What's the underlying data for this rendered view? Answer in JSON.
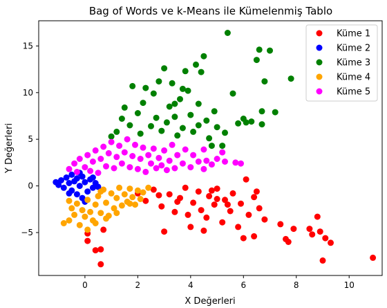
{
  "chart_data": {
    "type": "scatter",
    "title": "Bag of Words ve k-Means ile Kümelenmiş Tablo",
    "xlabel": "X Değerleri",
    "ylabel": "Y Değerleri",
    "xlim": [
      -1.75,
      11.25
    ],
    "ylim": [
      -9.6,
      17.7
    ],
    "xticks": [
      0,
      2,
      4,
      6,
      8,
      10
    ],
    "yticks": [
      -5,
      0,
      5,
      10,
      15
    ],
    "grid": false,
    "legend_position": "top-right",
    "series": [
      {
        "name": "Küme 1",
        "color": "#ff0000",
        "points": [
          [
            2.0,
            -0.8
          ],
          [
            2.3,
            -1.6
          ],
          [
            2.6,
            -0.4
          ],
          [
            2.9,
            -2.2
          ],
          [
            3.2,
            -0.9
          ],
          [
            3.4,
            -2.8
          ],
          [
            3.6,
            -1.3
          ],
          [
            3.8,
            -0.2
          ],
          [
            3.9,
            -3.1
          ],
          [
            4.1,
            -1.8
          ],
          [
            4.3,
            -0.6
          ],
          [
            4.4,
            -2.6
          ],
          [
            4.6,
            -3.4
          ],
          [
            4.7,
            -1.1
          ],
          [
            4.9,
            -2.0
          ],
          [
            5.0,
            -0.3
          ],
          [
            5.2,
            -3.9
          ],
          [
            5.3,
            -1.5
          ],
          [
            5.5,
            -2.7
          ],
          [
            5.6,
            -0.8
          ],
          [
            5.8,
            -4.4
          ],
          [
            5.9,
            -1.9
          ],
          [
            6.1,
            0.7
          ],
          [
            6.2,
            -3.1
          ],
          [
            6.4,
            -1.2
          ],
          [
            6.6,
            -2.4
          ],
          [
            6.8,
            -3.6
          ],
          [
            3.0,
            -4.9
          ],
          [
            4.0,
            -4.4
          ],
          [
            4.5,
            -4.8
          ],
          [
            6.0,
            -5.6
          ],
          [
            6.4,
            -5.4
          ],
          [
            6.5,
            -0.6
          ],
          [
            7.4,
            -4.1
          ],
          [
            7.6,
            -5.7
          ],
          [
            7.7,
            -6.0
          ],
          [
            7.9,
            -4.6
          ],
          [
            8.5,
            -4.6
          ],
          [
            8.6,
            -5.2
          ],
          [
            8.8,
            -3.3
          ],
          [
            8.9,
            -4.9
          ],
          [
            9.1,
            -5.6
          ],
          [
            9.3,
            -6.1
          ],
          [
            9.0,
            -8.0
          ],
          [
            10.9,
            -7.7
          ],
          [
            0.1,
            -5.9
          ],
          [
            0.1,
            -5.1
          ],
          [
            0.4,
            -6.9
          ],
          [
            0.6,
            -6.8
          ],
          [
            0.7,
            -4.7
          ],
          [
            0.6,
            -8.4
          ],
          [
            5.4,
            -2.0
          ],
          [
            5.0,
            -1.4
          ],
          [
            4.8,
            -0.5
          ],
          [
            3.5,
            -1.7
          ],
          [
            2.8,
            -1.0
          ]
        ]
      },
      {
        "name": "Küme 2",
        "color": "#0000ff",
        "points": [
          [
            -1.1,
            0.4
          ],
          [
            -1.0,
            0.1
          ],
          [
            -0.9,
            0.6
          ],
          [
            -0.8,
            -0.2
          ],
          [
            -0.7,
            0.9
          ],
          [
            -0.6,
            0.3
          ],
          [
            -0.5,
            -0.5
          ],
          [
            -0.5,
            1.2
          ],
          [
            -0.4,
            0.5
          ],
          [
            -0.3,
            -0.9
          ],
          [
            -0.3,
            0.8
          ],
          [
            -0.2,
            0.0
          ],
          [
            -0.1,
            -1.3
          ],
          [
            -0.1,
            1.0
          ],
          [
            0.0,
            0.4
          ],
          [
            0.1,
            -0.6
          ],
          [
            0.2,
            0.7
          ],
          [
            0.3,
            -0.2
          ],
          [
            0.4,
            0.3
          ],
          [
            0.5,
            -0.1
          ],
          [
            0.0,
            -1.7
          ],
          [
            -0.2,
            1.4
          ],
          [
            -0.6,
            -0.8
          ],
          [
            0.3,
            0.9
          ]
        ]
      },
      {
        "name": "Küme 3",
        "color": "#008000",
        "points": [
          [
            1.2,
            5.8
          ],
          [
            1.4,
            7.2
          ],
          [
            1.5,
            8.4
          ],
          [
            1.7,
            6.5
          ],
          [
            1.8,
            10.7
          ],
          [
            2.0,
            7.8
          ],
          [
            2.1,
            5.6
          ],
          [
            2.2,
            8.9
          ],
          [
            2.3,
            10.5
          ],
          [
            2.5,
            6.4
          ],
          [
            2.6,
            9.9
          ],
          [
            2.7,
            7.3
          ],
          [
            2.8,
            11.2
          ],
          [
            2.9,
            5.9
          ],
          [
            3.0,
            12.6
          ],
          [
            3.1,
            6.8
          ],
          [
            3.2,
            8.5
          ],
          [
            3.3,
            11.0
          ],
          [
            3.4,
            7.4
          ],
          [
            3.5,
            5.4
          ],
          [
            3.6,
            9.3
          ],
          [
            3.7,
            6.2
          ],
          [
            3.8,
            12.3
          ],
          [
            3.9,
            10.2
          ],
          [
            4.0,
            7.6
          ],
          [
            4.1,
            5.8
          ],
          [
            4.2,
            13.0
          ],
          [
            4.3,
            8.8
          ],
          [
            4.4,
            12.2
          ],
          [
            4.5,
            13.9
          ],
          [
            4.6,
            7.0
          ],
          [
            4.7,
            5.1
          ],
          [
            4.8,
            4.3
          ],
          [
            4.9,
            8.0
          ],
          [
            5.0,
            6.3
          ],
          [
            5.2,
            4.3
          ],
          [
            5.3,
            5.7
          ],
          [
            5.4,
            16.4
          ],
          [
            5.6,
            9.9
          ],
          [
            5.8,
            6.7
          ],
          [
            6.0,
            7.2
          ],
          [
            6.1,
            6.8
          ],
          [
            6.3,
            6.9
          ],
          [
            6.5,
            13.5
          ],
          [
            6.6,
            14.6
          ],
          [
            6.7,
            8.0
          ],
          [
            6.8,
            11.2
          ],
          [
            7.0,
            14.5
          ],
          [
            7.2,
            7.9
          ],
          [
            7.8,
            11.5
          ],
          [
            6.7,
            6.6
          ],
          [
            1.0,
            5.3
          ],
          [
            3.7,
            10.4
          ],
          [
            4.3,
            6.5
          ],
          [
            3.4,
            8.8
          ]
        ]
      },
      {
        "name": "Küme 4",
        "color": "#ffa500",
        "points": [
          [
            -0.6,
            -1.6
          ],
          [
            -0.5,
            -2.4
          ],
          [
            -0.4,
            -3.1
          ],
          [
            -0.3,
            -1.9
          ],
          [
            -0.2,
            -4.2
          ],
          [
            -0.1,
            -2.6
          ],
          [
            0.0,
            -3.3
          ],
          [
            0.1,
            -1.5
          ],
          [
            0.2,
            -2.8
          ],
          [
            0.3,
            -3.7
          ],
          [
            0.4,
            -2.0
          ],
          [
            0.5,
            -1.1
          ],
          [
            0.6,
            -2.9
          ],
          [
            0.7,
            -0.4
          ],
          [
            0.8,
            -1.8
          ],
          [
            0.9,
            -3.2
          ],
          [
            1.0,
            -0.8
          ],
          [
            1.1,
            -2.4
          ],
          [
            1.2,
            -1.3
          ],
          [
            1.3,
            -0.2
          ],
          [
            1.4,
            -2.1
          ],
          [
            1.5,
            -0.9
          ],
          [
            1.6,
            -1.7
          ],
          [
            1.7,
            -0.3
          ],
          [
            1.8,
            -1.2
          ],
          [
            1.9,
            -2.0
          ],
          [
            2.0,
            -0.5
          ],
          [
            2.1,
            -1.4
          ],
          [
            2.2,
            -0.7
          ],
          [
            2.4,
            -0.2
          ],
          [
            -0.6,
            -3.7
          ],
          [
            -0.8,
            -4.0
          ],
          [
            0.1,
            -4.7
          ],
          [
            0.4,
            -4.0
          ],
          [
            1.2,
            -2.9
          ],
          [
            0.8,
            -3.5
          ],
          [
            1.7,
            -1.9
          ],
          [
            0.6,
            -0.6
          ]
        ]
      },
      {
        "name": "Küme 5",
        "color": "#ff00ff",
        "points": [
          [
            -0.6,
            1.8
          ],
          [
            -0.4,
            2.4
          ],
          [
            -0.3,
            1.5
          ],
          [
            -0.2,
            2.9
          ],
          [
            0.0,
            2.0
          ],
          [
            0.1,
            3.3
          ],
          [
            0.2,
            1.6
          ],
          [
            0.3,
            2.6
          ],
          [
            0.4,
            3.8
          ],
          [
            0.5,
            1.4
          ],
          [
            0.6,
            2.9
          ],
          [
            0.7,
            4.2
          ],
          [
            0.8,
            2.1
          ],
          [
            0.9,
            3.5
          ],
          [
            1.0,
            4.7
          ],
          [
            1.1,
            1.9
          ],
          [
            1.2,
            3.1
          ],
          [
            1.3,
            4.3
          ],
          [
            1.4,
            2.4
          ],
          [
            1.5,
            3.6
          ],
          [
            1.6,
            5.0
          ],
          [
            1.7,
            2.0
          ],
          [
            1.8,
            3.2
          ],
          [
            1.9,
            4.4
          ],
          [
            2.0,
            1.8
          ],
          [
            2.1,
            2.9
          ],
          [
            2.2,
            4.1
          ],
          [
            2.3,
            1.5
          ],
          [
            2.4,
            3.3
          ],
          [
            2.5,
            2.4
          ],
          [
            2.6,
            4.0
          ],
          [
            2.7,
            1.9
          ],
          [
            2.8,
            3.0
          ],
          [
            2.9,
            2.2
          ],
          [
            3.0,
            3.8
          ],
          [
            3.1,
            1.7
          ],
          [
            3.2,
            2.7
          ],
          [
            3.4,
            1.9
          ],
          [
            3.5,
            3.3
          ],
          [
            3.7,
            2.4
          ],
          [
            3.8,
            3.9
          ],
          [
            4.0,
            2.0
          ],
          [
            4.1,
            3.3
          ],
          [
            4.3,
            2.6
          ],
          [
            4.5,
            1.8
          ],
          [
            4.6,
            2.7
          ],
          [
            4.8,
            2.3
          ],
          [
            5.0,
            2.9
          ],
          [
            5.2,
            3.6
          ],
          [
            5.3,
            2.6
          ],
          [
            5.7,
            2.5
          ],
          [
            5.9,
            2.4
          ],
          [
            4.5,
            3.9
          ],
          [
            3.3,
            4.4
          ]
        ]
      }
    ]
  }
}
